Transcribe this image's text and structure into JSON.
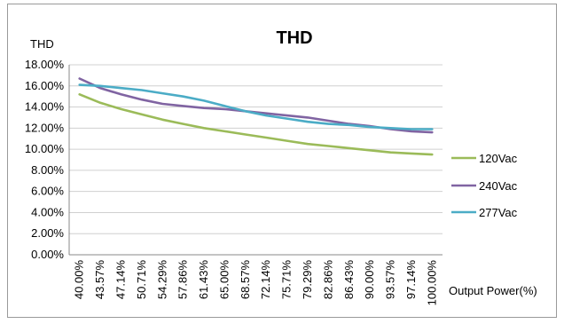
{
  "chart_data": {
    "type": "line",
    "title": "THD",
    "ylabel": "THD",
    "xlabel": "Output Power(%)",
    "ylim": [
      0,
      18
    ],
    "yticks": [
      "0.00%",
      "2.00%",
      "4.00%",
      "6.00%",
      "8.00%",
      "10.00%",
      "12.00%",
      "14.00%",
      "16.00%",
      "18.00%"
    ],
    "ytick_values": [
      0,
      2,
      4,
      6,
      8,
      10,
      12,
      14,
      16,
      18
    ],
    "categories": [
      "40.00%",
      "43.57%",
      "47.14%",
      "50.71%",
      "54.29%",
      "57.86%",
      "61.43%",
      "65.00%",
      "68.57%",
      "72.14%",
      "75.71%",
      "79.29%",
      "82.86%",
      "86.43%",
      "90.00%",
      "93.57%",
      "97.14%",
      "100.00%"
    ],
    "grid": true,
    "legend_position": "right",
    "series": [
      {
        "name": "120Vac",
        "color": "#9bbb59",
        "values": [
          15.2,
          14.4,
          13.8,
          13.3,
          12.8,
          12.4,
          12.0,
          11.7,
          11.4,
          11.1,
          10.8,
          10.5,
          10.3,
          10.1,
          9.9,
          9.7,
          9.6,
          9.5
        ]
      },
      {
        "name": "240Vac",
        "color": "#8064a2",
        "values": [
          16.7,
          15.8,
          15.2,
          14.7,
          14.3,
          14.1,
          13.9,
          13.8,
          13.6,
          13.4,
          13.2,
          13.0,
          12.7,
          12.4,
          12.2,
          11.9,
          11.7,
          11.6
        ]
      },
      {
        "name": "277Vac",
        "color": "#4bacc6",
        "values": [
          16.1,
          16.0,
          15.8,
          15.6,
          15.3,
          15.0,
          14.6,
          14.1,
          13.6,
          13.2,
          12.9,
          12.6,
          12.4,
          12.3,
          12.1,
          12.0,
          11.9,
          11.9
        ]
      }
    ]
  }
}
